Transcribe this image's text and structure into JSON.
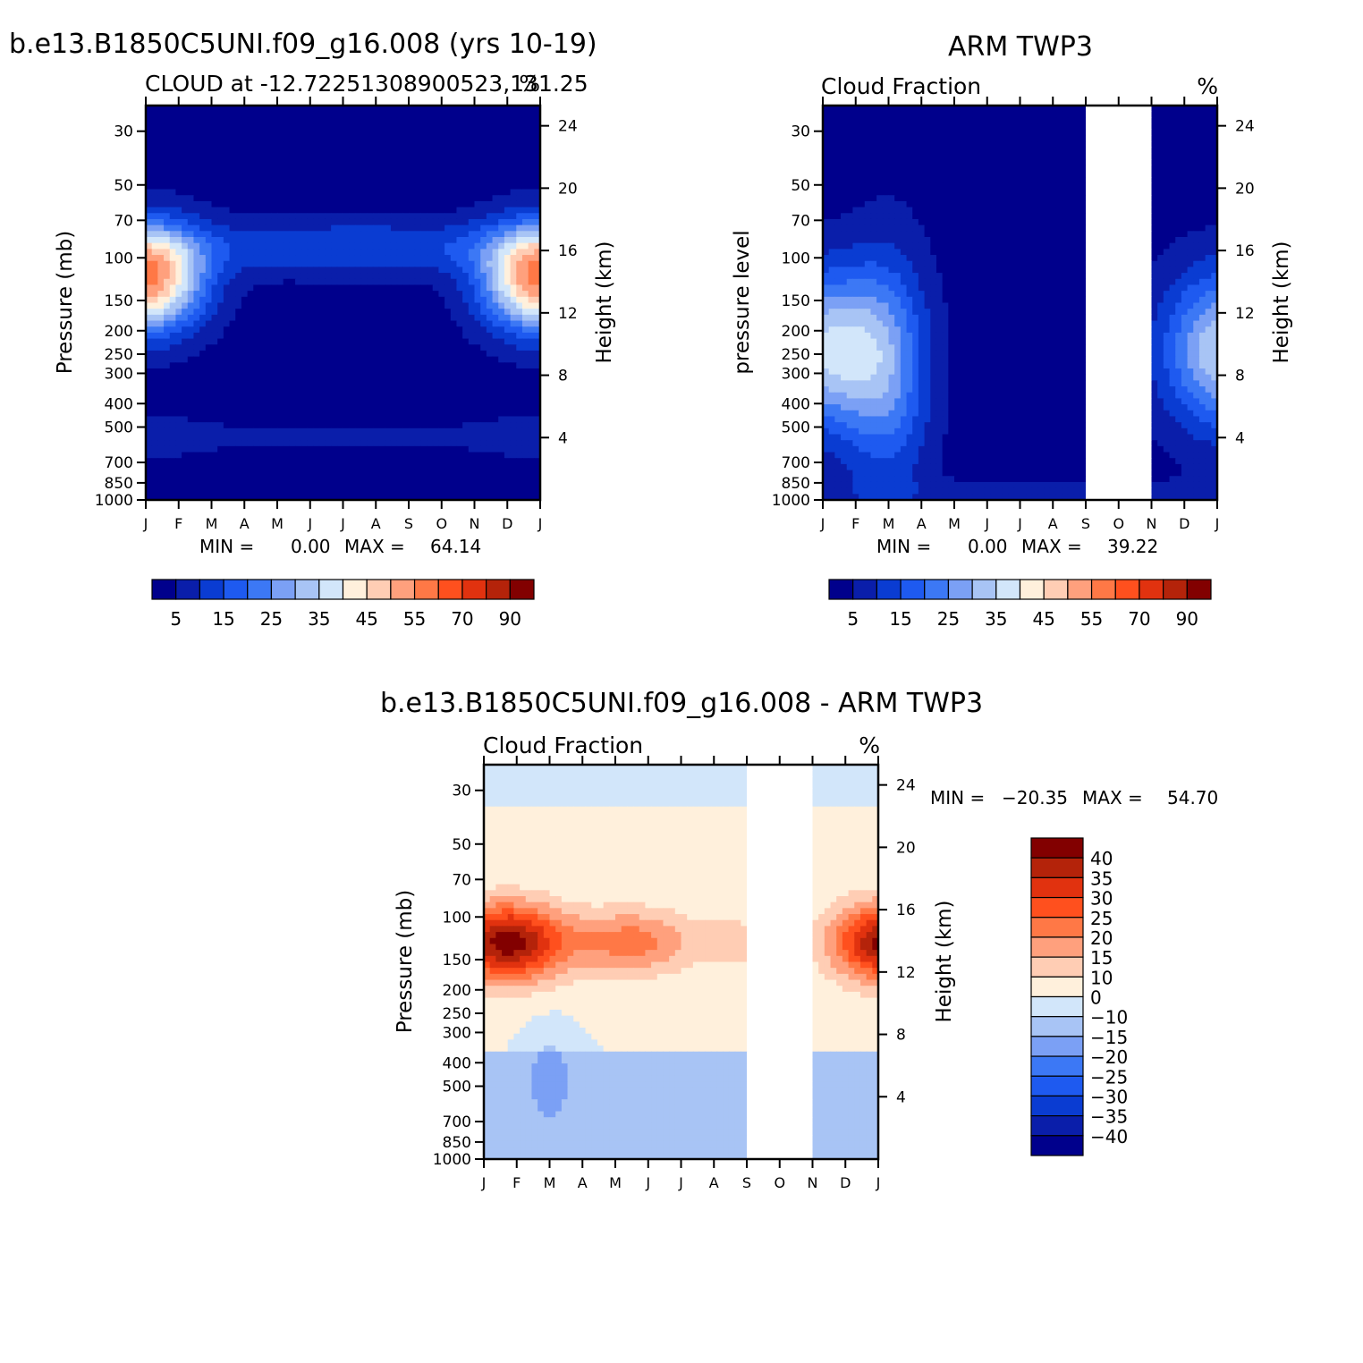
{
  "top_left": {
    "case_title": "b.e13.B1850C5UNI.f09_g16.008 (yrs 10-19)",
    "left_string": "CLOUD at -12.72251308900523,131.25",
    "right_string": "%",
    "y_label": "Pressure (mb)",
    "y2_label": "Height (km)",
    "stats": {
      "min_label": "MIN =",
      "min": "0.00",
      "max_label": "MAX =",
      "max": "64.14"
    },
    "colorbar_labels": [
      "5",
      "15",
      "25",
      "35",
      "45",
      "55",
      "70",
      "90"
    ]
  },
  "top_right": {
    "case_title": "ARM TWP3",
    "left_string": "Cloud Fraction",
    "right_string": "%",
    "y_label": "pressure level",
    "y2_label": "Height (km)",
    "stats": {
      "min_label": "MIN =",
      "min": "0.00",
      "max_label": "MAX =",
      "max": "39.22"
    },
    "colorbar_labels": [
      "5",
      "15",
      "25",
      "35",
      "45",
      "55",
      "70",
      "90"
    ]
  },
  "bottom": {
    "case_title": "b.e13.B1850C5UNI.f09_g16.008 - ARM TWP3",
    "left_string": "Cloud Fraction",
    "right_string": "%",
    "y_label": "Pressure (mb)",
    "y2_label": "Height (km)",
    "stats": {
      "min_label": "MIN =",
      "min": "-20.35",
      "max_label": "MAX =",
      "max": "54.70"
    },
    "colorbar_labels": [
      "40",
      "35",
      "30",
      "25",
      "20",
      "15",
      "10",
      "0",
      "-10",
      "-15",
      "-20",
      "-25",
      "-30",
      "-35",
      "-40"
    ]
  },
  "chart_data": [
    {
      "type": "heatmap",
      "title": "b.e13.B1850C5UNI.f09_g16.008 (yrs 10-19)",
      "subtitle": "CLOUD at -12.72251308900523,131.25",
      "units": "%",
      "ylabel": "Pressure (mb)",
      "y2label": "Height (km)",
      "x_ticks": [
        "J",
        "F",
        "M",
        "A",
        "M",
        "J",
        "J",
        "A",
        "S",
        "O",
        "N",
        "D",
        "J"
      ],
      "y_ticks": [
        30,
        50,
        70,
        100,
        150,
        200,
        250,
        300,
        400,
        500,
        700,
        850,
        1000
      ],
      "y2_ticks": [
        24,
        20,
        16,
        12,
        8,
        4
      ],
      "missing_months": [],
      "levels": [
        5,
        10,
        15,
        20,
        25,
        30,
        35,
        40,
        45,
        50,
        55,
        60,
        70,
        80,
        90
      ],
      "min": 0.0,
      "max": 64.14
    },
    {
      "type": "heatmap",
      "title": "ARM TWP3",
      "subtitle": "Cloud Fraction",
      "units": "%",
      "ylabel": "pressure level",
      "y2label": "Height (km)",
      "x_ticks": [
        "J",
        "F",
        "M",
        "A",
        "M",
        "J",
        "J",
        "A",
        "S",
        "O",
        "N",
        "D",
        "J"
      ],
      "y_ticks": [
        30,
        50,
        70,
        100,
        150,
        200,
        250,
        300,
        400,
        500,
        700,
        850,
        1000
      ],
      "y2_ticks": [
        24,
        20,
        16,
        12,
        8,
        4
      ],
      "missing_months": [
        "S",
        "O"
      ],
      "levels": [
        5,
        10,
        15,
        20,
        25,
        30,
        35,
        40,
        45,
        50,
        55,
        60,
        70,
        80,
        90
      ],
      "min": 0.0,
      "max": 39.22
    },
    {
      "type": "heatmap",
      "title": "b.e13.B1850C5UNI.f09_g16.008 - ARM TWP3",
      "subtitle": "Cloud Fraction",
      "units": "%",
      "ylabel": "Pressure (mb)",
      "y2label": "Height (km)",
      "x_ticks": [
        "J",
        "F",
        "M",
        "A",
        "M",
        "J",
        "J",
        "A",
        "S",
        "O",
        "N",
        "D",
        "J"
      ],
      "y_ticks": [
        30,
        50,
        70,
        100,
        150,
        200,
        250,
        300,
        400,
        500,
        700,
        850,
        1000
      ],
      "y2_ticks": [
        24,
        20,
        16,
        12,
        8,
        4
      ],
      "missing_months": [
        "S",
        "O"
      ],
      "levels": [
        -40,
        -35,
        -30,
        -25,
        -20,
        -15,
        -10,
        0,
        10,
        15,
        20,
        25,
        30,
        35,
        40
      ],
      "min": -20.35,
      "max": 54.7
    }
  ],
  "colors": {
    "seq": [
      "#00008c",
      "#0a1eaa",
      "#0a3cd2",
      "#1e5af0",
      "#3c78f5",
      "#7ba0f5",
      "#a8c4f5",
      "#d2e6fa",
      "#fff0dc",
      "#ffcdb4",
      "#ffa07d",
      "#ff7846",
      "#ff501e",
      "#e1320f",
      "#b4230a",
      "#820000"
    ],
    "div": [
      "#00008c",
      "#0a1eaa",
      "#0a3cd2",
      "#1e5af0",
      "#3c78f5",
      "#7ba0f5",
      "#a8c4f5",
      "#d2e6fa",
      "#fff0dc",
      "#ffcdb4",
      "#ffa07d",
      "#ff7846",
      "#ff501e",
      "#e1320f",
      "#b4230a",
      "#820000"
    ],
    "missing": "#ffffff"
  }
}
